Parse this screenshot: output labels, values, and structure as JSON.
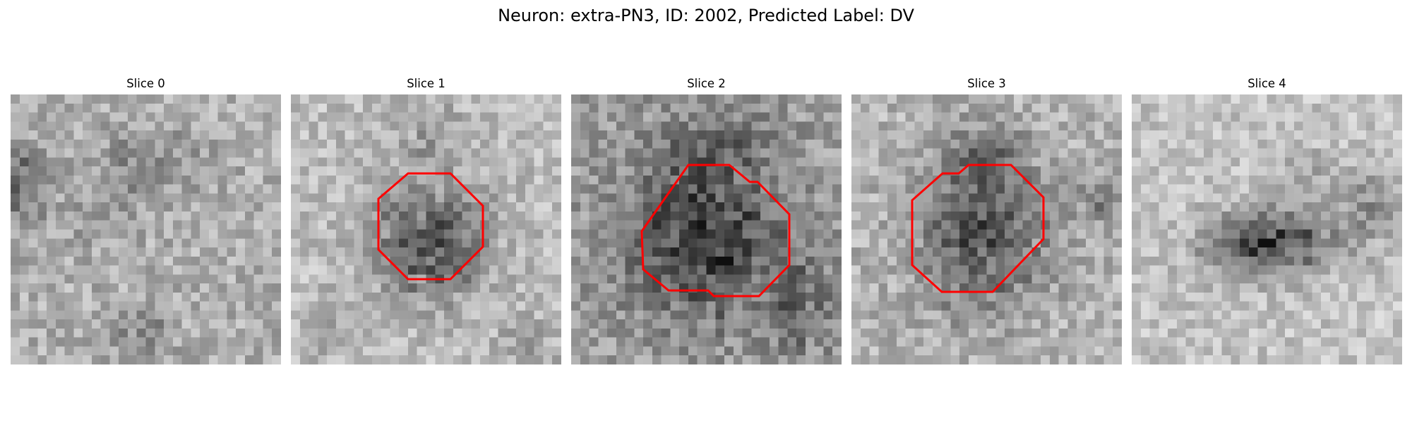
{
  "figure": {
    "title": "Neuron: extra-PN3, ID: 2002, Predicted Label: DV"
  },
  "colors": {
    "background": "#ffffff",
    "contour": "#ff0000",
    "text": "#000000"
  },
  "panels": [
    {
      "title": "Slice 0",
      "image": "grayscale microscopy patch",
      "has_contour": false
    },
    {
      "title": "Slice 1",
      "image": "grayscale microscopy patch",
      "has_contour": true
    },
    {
      "title": "Slice 2",
      "image": "grayscale microscopy patch",
      "has_contour": true
    },
    {
      "title": "Slice 3",
      "image": "grayscale microscopy patch",
      "has_contour": true
    },
    {
      "title": "Slice 4",
      "image": "grayscale microscopy patch",
      "has_contour": false
    }
  ]
}
